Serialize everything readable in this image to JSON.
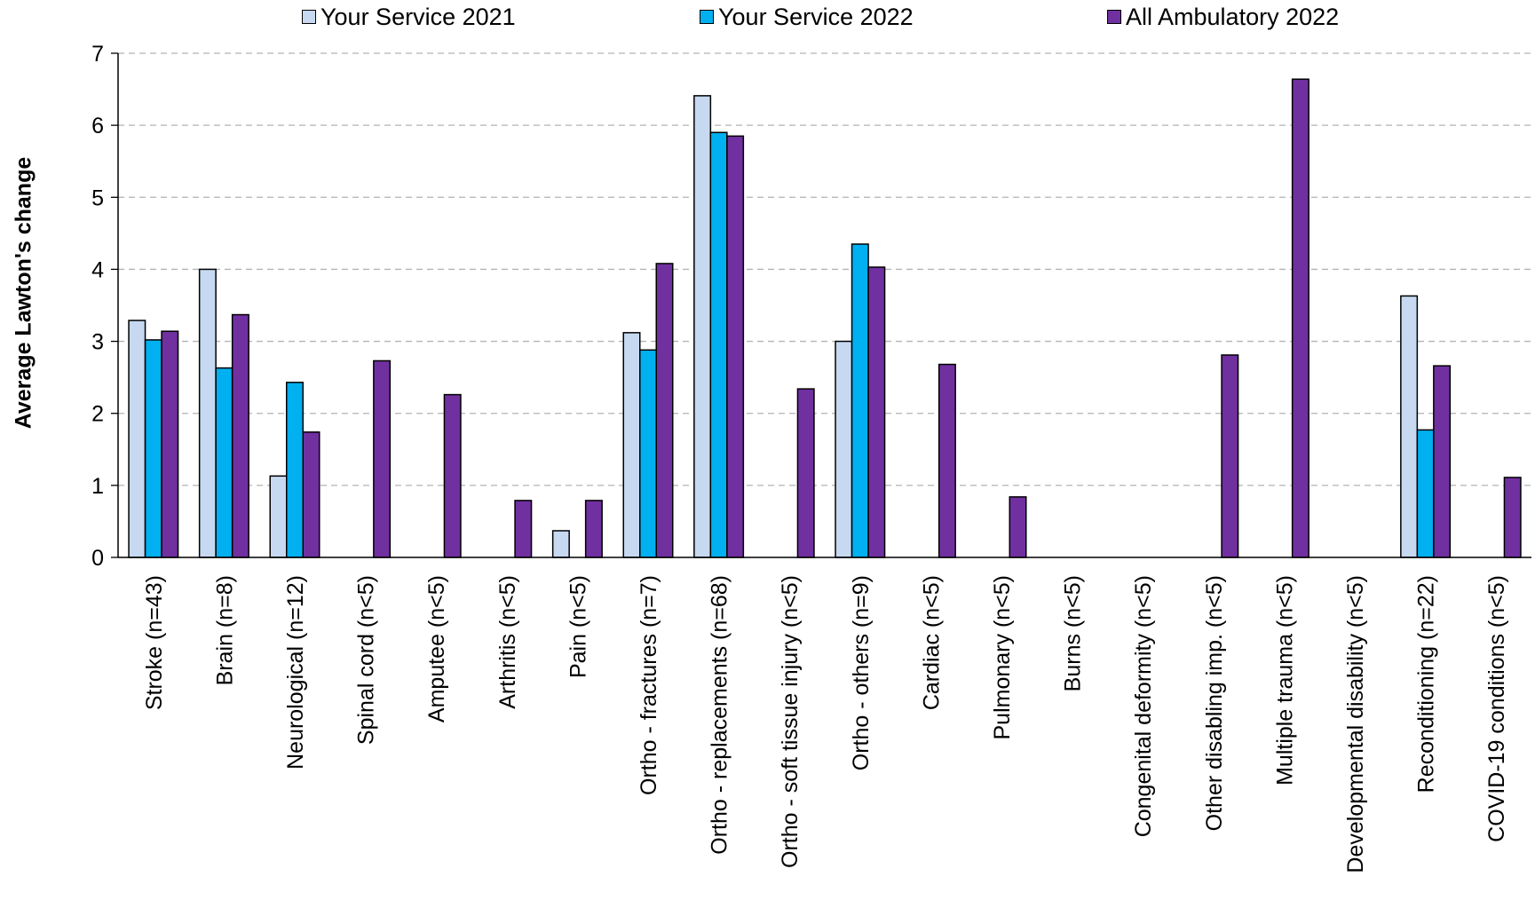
{
  "chart_data": {
    "type": "bar",
    "title": "",
    "xlabel": "",
    "ylabel": "Average Lawton's change",
    "ylim": [
      0,
      7
    ],
    "yticks": [
      0,
      1,
      2,
      3,
      4,
      5,
      6,
      7
    ],
    "grid": "horizontal dashed",
    "legend_position": "top",
    "categories": [
      "Stroke (n=43)",
      "Brain (n=8)",
      "Neurological (n=12)",
      "Spinal cord (n<5)",
      "Amputee (n<5)",
      "Arthritis (n<5)",
      "Pain (n<5)",
      "Ortho - fractures (n=7)",
      "Ortho - replacements (n=68)",
      "Ortho - soft tissue injury (n<5)",
      "Ortho - others (n=9)",
      "Cardiac (n<5)",
      "Pulmonary (n<5)",
      "Burns (n<5)",
      "Congenital deformity (n<5)",
      "Other disabling imp. (n<5)",
      "Multiple trauma (n<5)",
      "Developmental disability (n<5)",
      "Reconditioning (n=22)",
      "COVID-19 conditions (n<5)"
    ],
    "series": [
      {
        "name": "Your Service 2021",
        "color": "#C6D9F1",
        "values": [
          3.29,
          4.0,
          1.13,
          null,
          null,
          null,
          0.37,
          3.12,
          6.41,
          null,
          3.0,
          null,
          null,
          null,
          null,
          null,
          null,
          null,
          3.63,
          null
        ]
      },
      {
        "name": "Your Service 2022",
        "color": "#00B0F0",
        "values": [
          3.02,
          2.63,
          2.43,
          null,
          null,
          null,
          null,
          2.88,
          5.9,
          null,
          4.35,
          null,
          null,
          null,
          null,
          null,
          null,
          null,
          1.77,
          null
        ]
      },
      {
        "name": "All Ambulatory 2022",
        "color": "#7030A0",
        "values": [
          3.14,
          3.37,
          1.74,
          2.73,
          2.26,
          0.79,
          0.79,
          4.08,
          5.85,
          2.34,
          4.03,
          2.68,
          0.84,
          null,
          null,
          2.81,
          6.64,
          null,
          2.66,
          1.11
        ]
      }
    ]
  }
}
